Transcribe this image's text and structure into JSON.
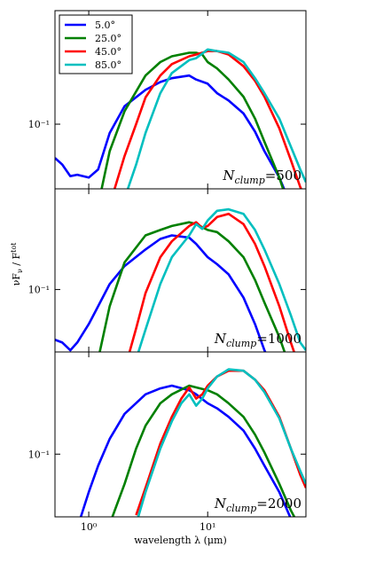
{
  "ylabel": {
    "a": "νF",
    "sub": "ν",
    "b": " / F",
    "sup": "tot"
  },
  "chart_data": [
    {
      "type": "line",
      "log_x": true,
      "log_y": true,
      "xlim": [
        0.52,
        67
      ],
      "ylim": [
        0.033,
        0.7
      ],
      "yticks": [
        {
          "value": 0.1,
          "label": "10⁻¹"
        }
      ],
      "legend": "upper left",
      "annotation": {
        "base": "N",
        "sub": "clump",
        "rest": "=500"
      },
      "series": [
        {
          "name": "5.0°",
          "color": "#0000ff",
          "x": [
            0.52,
            0.6,
            0.7,
            0.8,
            1,
            1.2,
            1.5,
            2,
            3,
            4,
            5,
            7,
            8,
            10,
            12,
            15,
            20,
            25,
            30,
            40,
            50
          ],
          "values": [
            0.056,
            0.05,
            0.041,
            0.042,
            0.04,
            0.046,
            0.086,
            0.136,
            0.18,
            0.206,
            0.22,
            0.23,
            0.215,
            0.2,
            0.17,
            0.15,
            0.12,
            0.088,
            0.063,
            0.04,
            0.025
          ]
        },
        {
          "name": "25.0°",
          "color": "#008000",
          "x": [
            1.2,
            1.5,
            2,
            3,
            4,
            5,
            7,
            8,
            9,
            10,
            12,
            15,
            20,
            25,
            30,
            40,
            50
          ],
          "values": [
            0.025,
            0.063,
            0.125,
            0.23,
            0.29,
            0.32,
            0.34,
            0.34,
            0.33,
            0.29,
            0.26,
            0.215,
            0.16,
            0.11,
            0.074,
            0.04,
            0.022
          ]
        },
        {
          "name": "45.0°",
          "color": "#ff0000",
          "x": [
            1.5,
            2,
            2.5,
            3,
            4,
            5,
            7,
            8,
            10,
            12,
            15,
            20,
            25,
            30,
            40,
            50,
            60,
            67
          ],
          "values": [
            0.025,
            0.058,
            0.1,
            0.158,
            0.23,
            0.28,
            0.32,
            0.33,
            0.35,
            0.35,
            0.33,
            0.27,
            0.21,
            0.16,
            0.093,
            0.054,
            0.034,
            0.028
          ]
        },
        {
          "name": "85.0°",
          "color": "#00bfbf",
          "x": [
            2,
            2.5,
            3,
            4,
            5,
            7,
            8,
            10,
            12,
            15,
            20,
            25,
            30,
            40,
            50,
            60,
            67
          ],
          "values": [
            0.028,
            0.05,
            0.086,
            0.17,
            0.24,
            0.3,
            0.31,
            0.36,
            0.35,
            0.34,
            0.29,
            0.22,
            0.17,
            0.11,
            0.068,
            0.046,
            0.037
          ]
        }
      ]
    },
    {
      "type": "line",
      "log_x": true,
      "log_y": true,
      "xlim": [
        0.52,
        67
      ],
      "ylim": [
        0.034,
        0.57
      ],
      "yticks": [
        {
          "value": 0.1,
          "label": "10⁻¹"
        }
      ],
      "annotation": {
        "base": "N",
        "sub": "clump",
        "rest": "=1000"
      },
      "series": [
        {
          "name": "5.0°",
          "color": "#0000ff",
          "x": [
            0.52,
            0.6,
            0.7,
            0.8,
            1,
            1.2,
            1.5,
            2,
            3,
            4,
            5,
            7,
            8,
            10,
            12,
            15,
            20,
            25,
            30,
            40
          ],
          "values": [
            0.042,
            0.04,
            0.035,
            0.04,
            0.055,
            0.075,
            0.11,
            0.15,
            0.2,
            0.24,
            0.255,
            0.245,
            0.22,
            0.175,
            0.155,
            0.13,
            0.087,
            0.055,
            0.035,
            0.02
          ]
        },
        {
          "name": "25.0°",
          "color": "#008000",
          "x": [
            1.2,
            1.5,
            2,
            3,
            4,
            5,
            7,
            8,
            10,
            12,
            15,
            20,
            25,
            30,
            40,
            50
          ],
          "values": [
            0.03,
            0.075,
            0.16,
            0.255,
            0.28,
            0.3,
            0.32,
            0.31,
            0.28,
            0.27,
            0.23,
            0.175,
            0.118,
            0.08,
            0.044,
            0.025
          ]
        },
        {
          "name": "45.0°",
          "color": "#ff0000",
          "x": [
            2,
            2.5,
            3,
            4,
            5,
            7,
            8,
            9,
            10,
            12,
            15,
            20,
            25,
            30,
            40,
            50,
            60
          ],
          "values": [
            0.025,
            0.051,
            0.094,
            0.175,
            0.23,
            0.3,
            0.32,
            0.29,
            0.3,
            0.35,
            0.37,
            0.31,
            0.22,
            0.15,
            0.075,
            0.04,
            0.025
          ]
        },
        {
          "name": "85.0°",
          "color": "#00bfbf",
          "x": [
            2.5,
            3,
            4,
            5,
            7,
            8,
            9,
            10,
            12,
            15,
            20,
            25,
            30,
            40,
            50,
            60,
            67
          ],
          "values": [
            0.03,
            0.05,
            0.11,
            0.175,
            0.255,
            0.31,
            0.285,
            0.33,
            0.39,
            0.4,
            0.37,
            0.28,
            0.2,
            0.11,
            0.064,
            0.04,
            0.035
          ]
        }
      ]
    },
    {
      "type": "line",
      "log_x": true,
      "log_y": true,
      "xlim": [
        0.52,
        67
      ],
      "ylim": [
        0.034,
        0.58
      ],
      "xticks": [
        {
          "value": 1,
          "label": "10⁰"
        },
        {
          "value": 10,
          "label": "10¹"
        }
      ],
      "yticks": [
        {
          "value": 0.1,
          "label": "10⁻¹"
        }
      ],
      "xlabel": "wavelength λ (μm)",
      "annotation": {
        "base": "N",
        "sub": "clump",
        "rest": "=2000"
      },
      "series": [
        {
          "name": "5.0°",
          "color": "#0000ff",
          "x": [
            0.8,
            1,
            1.2,
            1.5,
            2,
            3,
            4,
            5,
            7,
            8,
            10,
            12,
            15,
            20,
            25,
            30,
            40,
            50
          ],
          "values": [
            0.028,
            0.052,
            0.082,
            0.13,
            0.2,
            0.28,
            0.31,
            0.325,
            0.3,
            0.28,
            0.24,
            0.22,
            0.19,
            0.15,
            0.11,
            0.082,
            0.052,
            0.033
          ]
        },
        {
          "name": "25.0°",
          "color": "#008000",
          "x": [
            1.5,
            2,
            2.5,
            3,
            4,
            5,
            7,
            8,
            10,
            12,
            15,
            20,
            25,
            30,
            40,
            50,
            60
          ],
          "values": [
            0.03,
            0.06,
            0.11,
            0.163,
            0.24,
            0.28,
            0.325,
            0.315,
            0.3,
            0.28,
            0.24,
            0.19,
            0.14,
            0.103,
            0.06,
            0.038,
            0.028
          ]
        },
        {
          "name": "45.0°",
          "color": "#ff0000",
          "x": [
            2.5,
            3,
            4,
            5,
            6,
            7,
            8,
            9,
            10,
            12,
            15,
            20,
            25,
            30,
            40,
            50,
            60,
            67
          ],
          "values": [
            0.035,
            0.056,
            0.12,
            0.19,
            0.26,
            0.315,
            0.26,
            0.28,
            0.325,
            0.38,
            0.42,
            0.42,
            0.36,
            0.3,
            0.19,
            0.11,
            0.07,
            0.056
          ]
        },
        {
          "name": "85.0°",
          "color": "#00bfbf",
          "x": [
            2.5,
            3,
            4,
            5,
            6,
            7,
            8,
            9,
            10,
            12,
            15,
            20,
            25,
            30,
            40,
            50,
            60,
            67
          ],
          "values": [
            0.03,
            0.052,
            0.11,
            0.176,
            0.24,
            0.28,
            0.23,
            0.26,
            0.31,
            0.38,
            0.43,
            0.42,
            0.36,
            0.29,
            0.185,
            0.11,
            0.075,
            0.06
          ]
        }
      ]
    }
  ]
}
